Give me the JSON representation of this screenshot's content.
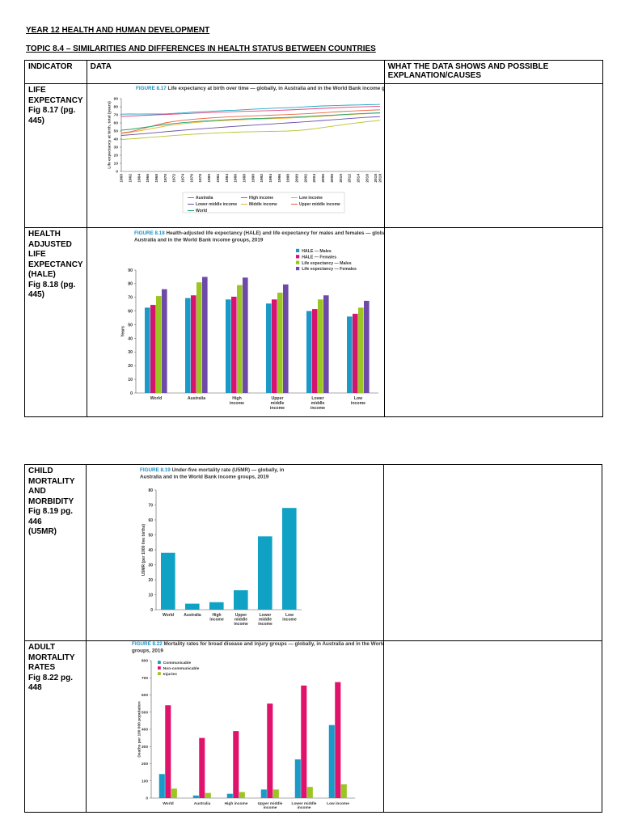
{
  "title": "YEAR 12 HEALTH AND HUMAN DEVELOPMENT",
  "topic": "TOPIC 8.4 – SIMILARITIES AND DIFFERENCES IN HEALTH STATUS BETWEEN COUNTRIES",
  "table_header": {
    "indicator": "INDICATOR",
    "data": "DATA",
    "explanation": "WHAT THE DATA SHOWS AND POSSIBLE EXPLANATION/CAUSES"
  },
  "rows": [
    {
      "indicator_lines": [
        "LIFE",
        "EXPECTANCY",
        "Fig 8.17 (pg.",
        "445)"
      ]
    },
    {
      "indicator_lines": [
        "HEALTH",
        "ADJUSTED LIFE",
        "EXPECTANCY",
        "(HALE)",
        "Fig 8.18 (pg.",
        "445)"
      ]
    },
    {
      "indicator_lines": [
        "CHILD",
        "MORTALITY",
        "AND",
        "MORBIDITY",
        "Fig 8.19 pg. 446",
        "(U5MR)"
      ]
    },
    {
      "indicator_lines": [
        "ADULT",
        "MORTALITY",
        "RATES",
        "Fig 8.22 pg. 448"
      ]
    }
  ],
  "chart_data": [
    {
      "type": "line",
      "figure": "FIGURE 8.17",
      "title": "Life expectancy at birth over time — globally, in Australia and in the World Bank income groups",
      "ylabel": "Life expectancy at birth, total (years)",
      "ylim": [
        0,
        90
      ],
      "yticks": [
        0,
        10,
        20,
        30,
        40,
        50,
        60,
        70,
        80,
        90
      ],
      "x": [
        1960,
        1962,
        1964,
        1966,
        1968,
        1970,
        1972,
        1974,
        1976,
        1978,
        1980,
        1982,
        1984,
        1986,
        1988,
        1990,
        1992,
        1994,
        1996,
        1998,
        2000,
        2002,
        2004,
        2006,
        2008,
        2010,
        2012,
        2014,
        2016,
        2018,
        2019
      ],
      "series": [
        {
          "name": "Australia",
          "color": "#19a7c9",
          "values": [
            70.8,
            71.0,
            70.9,
            71.1,
            71.0,
            71.0,
            71.8,
            72.3,
            73.2,
            73.8,
            74.3,
            74.8,
            75.4,
            75.7,
            76.3,
            76.9,
            77.4,
            77.9,
            78.4,
            78.8,
            79.2,
            79.9,
            80.5,
            81.0,
            81.3,
            81.7,
            82.0,
            82.2,
            82.5,
            82.7,
            82.9
          ]
        },
        {
          "name": "High income",
          "color": "#e8427c",
          "values": [
            68.0,
            68.5,
            69.0,
            69.5,
            69.9,
            70.3,
            70.8,
            71.3,
            71.8,
            72.3,
            72.7,
            73.2,
            73.6,
            73.9,
            74.3,
            74.6,
            74.9,
            75.2,
            75.6,
            76.0,
            76.5,
            77.0,
            77.5,
            78.0,
            78.5,
            79.0,
            79.4,
            79.8,
            80.1,
            80.4,
            80.6
          ]
        },
        {
          "name": "Low income",
          "color": "#b8c22b",
          "values": [
            39.5,
            40.2,
            41.0,
            41.9,
            42.7,
            43.6,
            44.4,
            45.2,
            45.9,
            46.5,
            47.1,
            47.6,
            48.1,
            48.5,
            48.9,
            49.1,
            49.3,
            49.5,
            49.7,
            50.0,
            50.6,
            51.5,
            52.8,
            54.3,
            55.8,
            57.3,
            58.8,
            60.2,
            61.5,
            62.6,
            63.2
          ]
        },
        {
          "name": "Lower middle income",
          "color": "#6a4da8",
          "values": [
            44.5,
            45.3,
            46.2,
            47.1,
            48.1,
            49.1,
            50.0,
            50.9,
            51.8,
            52.6,
            53.4,
            54.2,
            55.0,
            55.8,
            56.5,
            57.2,
            57.9,
            58.6,
            59.3,
            60.0,
            60.7,
            61.4,
            62.2,
            63.0,
            63.8,
            64.6,
            65.4,
            66.2,
            66.9,
            67.5,
            67.8
          ]
        },
        {
          "name": "Middle income",
          "color": "#f0b43a",
          "values": [
            47.0,
            48.3,
            50.0,
            52.0,
            54.0,
            56.0,
            57.6,
            58.9,
            60.0,
            60.9,
            61.7,
            62.4,
            63.0,
            63.5,
            64.0,
            64.4,
            64.8,
            65.2,
            65.6,
            66.0,
            66.5,
            67.0,
            67.6,
            68.3,
            69.0,
            69.7,
            70.3,
            70.9,
            71.4,
            71.8,
            72.0
          ]
        },
        {
          "name": "Upper middle income",
          "color": "#e8643c",
          "values": [
            47.5,
            49.0,
            51.5,
            54.5,
            57.5,
            60.0,
            61.8,
            63.2,
            64.3,
            65.2,
            66.0,
            66.7,
            67.3,
            67.8,
            68.3,
            68.7,
            69.1,
            69.5,
            69.9,
            70.3,
            70.8,
            71.3,
            71.9,
            72.6,
            73.3,
            74.0,
            74.6,
            75.1,
            75.6,
            76.0,
            76.2
          ]
        },
        {
          "name": "World",
          "color": "#1ea36a",
          "values": [
            51.0,
            52.0,
            53.5,
            55.0,
            56.6,
            58.0,
            59.2,
            60.3,
            61.2,
            62.0,
            62.7,
            63.3,
            63.9,
            64.4,
            64.9,
            65.3,
            65.6,
            66.0,
            66.4,
            66.8,
            67.3,
            67.8,
            68.4,
            69.0,
            69.6,
            70.2,
            70.8,
            71.3,
            71.8,
            72.3,
            72.6
          ]
        }
      ]
    },
    {
      "type": "bar",
      "figure": "FIGURE 8.18",
      "title": "Health-adjusted life expectancy (HALE) and life expectancy for males and females — globally, in Australia and in the World Bank income groups, 2019",
      "ylabel": "Years",
      "ylim": [
        0,
        90
      ],
      "yticks": [
        0,
        10,
        20,
        30,
        40,
        50,
        60,
        70,
        80,
        90
      ],
      "categories": [
        "World",
        "Australia",
        "High income",
        "Upper middle income",
        "Lower middle income",
        "Low income"
      ],
      "category_lines": [
        [
          "World"
        ],
        [
          "Australia"
        ],
        [
          "High",
          "income"
        ],
        [
          "Upper",
          "middle",
          "income"
        ],
        [
          "Lower",
          "middle",
          "income"
        ],
        [
          "Low",
          "income"
        ]
      ],
      "legend_position": "top-right",
      "series": [
        {
          "name": "HALE — Males",
          "color": "#1b9ac8",
          "values": [
            62.5,
            69.5,
            68.5,
            65.5,
            60,
            56
          ]
        },
        {
          "name": "HALE — Females",
          "color": "#d6146f",
          "values": [
            64.5,
            71.5,
            70.5,
            68.5,
            61.5,
            58
          ]
        },
        {
          "name": "Life expectancy — Males",
          "color": "#9ac523",
          "values": [
            71,
            81,
            79,
            73.5,
            68.5,
            62.5
          ]
        },
        {
          "name": "Life expectancy — Females",
          "color": "#6e4aa8",
          "values": [
            76,
            85,
            84.5,
            79.5,
            71.5,
            67.5
          ]
        }
      ]
    },
    {
      "type": "bar",
      "figure": "FIGURE 8.19",
      "title": "Under-five mortality rate (U5MR) — globally, in Australia and in the World Bank income groups, 2019",
      "ylabel": "U5MR (per 1000 live births)",
      "ylim": [
        0,
        80
      ],
      "yticks": [
        0,
        10,
        20,
        30,
        40,
        50,
        60,
        70,
        80
      ],
      "categories": [
        "World",
        "Australia",
        "High income",
        "Upper middle income",
        "Lower middle income",
        "Low income"
      ],
      "category_lines": [
        [
          "World"
        ],
        [
          "Australia"
        ],
        [
          "High",
          "income"
        ],
        [
          "Upper",
          "middle",
          "income"
        ],
        [
          "Lower",
          "middle",
          "income"
        ],
        [
          "Low",
          "income"
        ]
      ],
      "series": [
        {
          "color": "#0fa2c5",
          "values": [
            38,
            4,
            5,
            13,
            49,
            68
          ]
        }
      ]
    },
    {
      "type": "bar",
      "figure": "FIGURE 8.22",
      "title": "Mortality rates for broad disease and injury groups — globally, in Australia and in the World Bank income groups, 2019",
      "ylabel": "Deaths per 100 000 population",
      "ylim": [
        0,
        800
      ],
      "yticks": [
        0,
        100,
        200,
        300,
        400,
        500,
        600,
        700,
        800
      ],
      "categories": [
        "World",
        "Australia",
        "High income",
        "Upper middle income",
        "Lower middle income",
        "Low income"
      ],
      "category_lines": [
        [
          "World"
        ],
        [
          "Australia"
        ],
        [
          "High income"
        ],
        [
          "Upper middle",
          "income"
        ],
        [
          "Lower middle",
          "income"
        ],
        [
          "Low income"
        ]
      ],
      "legend_position": "top-left",
      "series": [
        {
          "name": "Communicable",
          "color": "#1b9ac8",
          "values": [
            140,
            15,
            25,
            50,
            225,
            425
          ]
        },
        {
          "name": "Non-communicable",
          "color": "#e0136c",
          "values": [
            540,
            350,
            390,
            550,
            655,
            675
          ]
        },
        {
          "name": "Injuries",
          "color": "#9ac523",
          "values": [
            55,
            30,
            35,
            50,
            65,
            80
          ]
        }
      ]
    }
  ]
}
